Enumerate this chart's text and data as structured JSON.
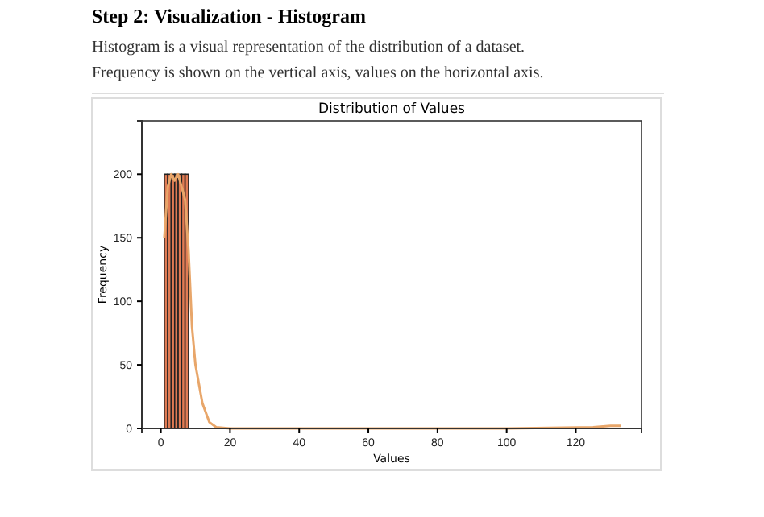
{
  "chart_data": {
    "type": "histogram",
    "title": "Distribution of Values",
    "xlabel": "Values",
    "ylabel": "Frequency",
    "annotations": [
      "Step 2: Visualization - Histogram",
      "Histogram is a visual representation of the distribution of a dataset.",
      "Frequency is shown on the vertical axis, values on the horizontal axis."
    ],
    "bins": [
      1,
      2,
      3,
      4,
      5,
      6,
      7,
      8
    ],
    "values": [
      200,
      200,
      200,
      200,
      200,
      200,
      200
    ],
    "color": "#e07b54",
    "series": [
      {
        "type": "line",
        "color": "#e8a66a",
        "x": [
          1,
          2,
          3,
          4,
          5,
          6,
          7,
          8,
          9,
          10,
          12,
          14,
          16,
          20,
          60,
          100,
          125,
          130,
          133
        ],
        "values": [
          150,
          190,
          200,
          195,
          200,
          190,
          180,
          140,
          80,
          50,
          20,
          5,
          1,
          0,
          0,
          0,
          1,
          2,
          2
        ]
      }
    ],
    "xlim": [
      -5.5,
      139
    ],
    "xticks": [
      0,
      20,
      40,
      60,
      80,
      100,
      120
    ],
    "ylim": [
      0,
      242
    ],
    "yticks": [
      0,
      50,
      100,
      150,
      200
    ],
    "grid": false
  }
}
